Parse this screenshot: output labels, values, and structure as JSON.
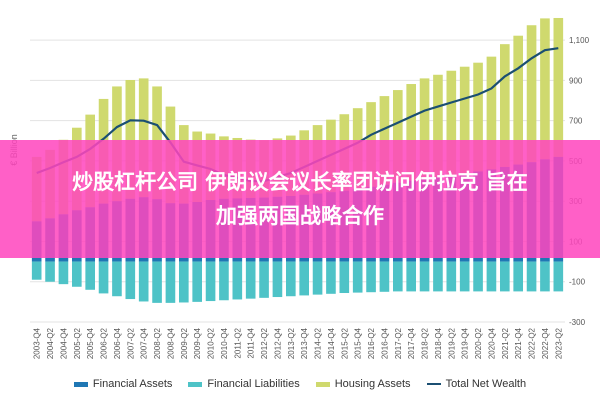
{
  "banner": {
    "line1": "炒股杠杆公司 伊朗议会议长率团访问伊拉克 旨在",
    "line2": "加强两国战略合作"
  },
  "colors": {
    "financial_assets": "#1f77b4",
    "financial_liabilities": "#4ec3c7",
    "housing_assets": "#cfd96e",
    "total_net_wealth": "#1b4f72",
    "overlay": "#ff46be"
  },
  "chart_data": {
    "type": "bar",
    "stacked": true,
    "title": "",
    "ylabel": "€ Billion",
    "ylim": [
      -300,
      1200
    ],
    "yticks": [
      -300,
      -100,
      100,
      300,
      500,
      700,
      900,
      1100
    ],
    "ytick_labels": [
      "-300",
      "-100",
      "100",
      "300",
      "500",
      "700",
      "900",
      "1,100"
    ],
    "grid": true,
    "legend_position": "bottom",
    "categories": [
      "2003-Q4",
      "2004-Q2",
      "2004-Q4",
      "2005-Q2",
      "2005-Q4",
      "2006-Q2",
      "2006-Q4",
      "2007-Q2",
      "2007-Q4",
      "2008-Q2",
      "2008-Q4",
      "2009-Q2",
      "2009-Q4",
      "2010-Q2",
      "2010-Q4",
      "2011-Q2",
      "2011-Q4",
      "2012-Q2",
      "2012-Q4",
      "2013-Q2",
      "2013-Q4",
      "2014-Q2",
      "2014-Q4",
      "2015-Q2",
      "2015-Q4",
      "2016-Q2",
      "2016-Q4",
      "2017-Q2",
      "2017-Q4",
      "2018-Q2",
      "2018-Q4",
      "2019-Q2",
      "2019-Q4",
      "2020-Q2",
      "2020-Q4",
      "2021-Q2",
      "2021-Q4",
      "2022-Q2",
      "2022-Q4",
      "2023-Q2"
    ],
    "series": [
      {
        "name": "Financial Assets",
        "kind": "bar",
        "values": [
          200,
          215,
          235,
          255,
          270,
          288,
          300,
          312,
          320,
          310,
          290,
          288,
          296,
          306,
          312,
          314,
          316,
          318,
          322,
          326,
          332,
          338,
          345,
          352,
          362,
          372,
          382,
          392,
          402,
          410,
          418,
          428,
          438,
          448,
          458,
          470,
          482,
          494,
          508,
          520
        ]
      },
      {
        "name": "Financial Liabilities",
        "kind": "bar",
        "values": [
          -90,
          -100,
          -112,
          -125,
          -140,
          -158,
          -172,
          -186,
          -198,
          -205,
          -205,
          -203,
          -200,
          -196,
          -192,
          -188,
          -184,
          -180,
          -176,
          -172,
          -168,
          -164,
          -160,
          -156,
          -154,
          -152,
          -150,
          -148,
          -148,
          -148,
          -148,
          -148,
          -148,
          -148,
          -148,
          -148,
          -148,
          -148,
          -148,
          -148
        ]
      },
      {
        "name": "Housing Assets",
        "kind": "bar",
        "values": [
          320,
          340,
          370,
          410,
          460,
          520,
          570,
          590,
          590,
          560,
          480,
          390,
          350,
          330,
          310,
          300,
          290,
          285,
          290,
          300,
          320,
          340,
          360,
          380,
          400,
          420,
          440,
          460,
          480,
          500,
          510,
          520,
          530,
          540,
          560,
          610,
          640,
          680,
          700,
          690
        ]
      },
      {
        "name": "Total Net Wealth",
        "kind": "line",
        "values": [
          440,
          465,
          493,
          520,
          560,
          610,
          668,
          702,
          700,
          678,
          592,
          496,
          478,
          460,
          430,
          416,
          400,
          400,
          420,
          440,
          470,
          500,
          530,
          560,
          590,
          630,
          660,
          690,
          720,
          750,
          770,
          790,
          810,
          830,
          860,
          920,
          960,
          1010,
          1050,
          1060
        ]
      }
    ]
  }
}
